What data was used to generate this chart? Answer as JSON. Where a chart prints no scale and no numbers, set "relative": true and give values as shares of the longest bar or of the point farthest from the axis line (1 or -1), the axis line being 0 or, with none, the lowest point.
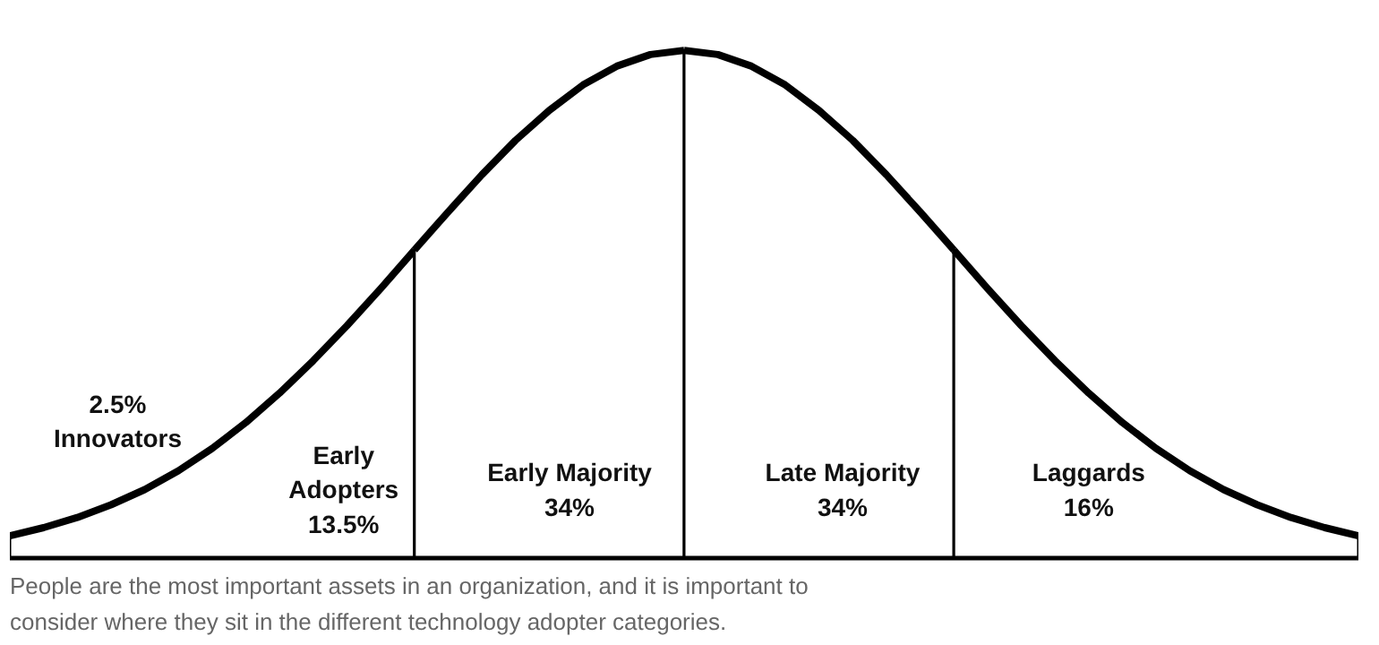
{
  "chart_data": {
    "type": "area",
    "relative": true,
    "categories": [
      null,
      null,
      null,
      null,
      null,
      null,
      null,
      null,
      null,
      null,
      null,
      null,
      null,
      null,
      null,
      null,
      null,
      null,
      null,
      null,
      null,
      null,
      null,
      null,
      null,
      null,
      null,
      null,
      null,
      null,
      null,
      null,
      null,
      null,
      null,
      null,
      null,
      null,
      null,
      null,
      null
    ],
    "series": [
      {
        "color": "#000000",
        "values": [
          0.044,
          0.06,
          0.08,
          0.105,
          0.135,
          0.172,
          0.216,
          0.267,
          0.325,
          0.389,
          0.458,
          0.531,
          0.607,
          null,
          null,
          null,
          null,
          null,
          null,
          null,
          null,
          null,
          null,
          null,
          null,
          null,
          null,
          null,
          null,
          null,
          null,
          null,
          null,
          null,
          null,
          null,
          null,
          null,
          null,
          null,
          null
        ]
      },
      {
        "color": "#000000",
        "values": [
          null,
          null,
          null,
          null,
          null,
          null,
          null,
          null,
          null,
          null,
          null,
          null,
          0.607,
          0.682,
          0.755,
          0.823,
          0.882,
          0.932,
          0.969,
          0.992,
          1,
          null,
          null,
          null,
          null,
          null,
          null,
          null,
          null,
          null,
          null,
          null,
          null,
          null,
          null,
          null,
          null,
          null,
          null,
          null,
          null
        ]
      },
      {
        "color": "#000000",
        "values": [
          null,
          null,
          null,
          null,
          null,
          null,
          null,
          null,
          null,
          null,
          null,
          null,
          null,
          null,
          null,
          null,
          null,
          null,
          null,
          null,
          1,
          0.992,
          0.969,
          0.932,
          0.882,
          0.823,
          0.755,
          0.682,
          0.607,
          null,
          null,
          null,
          null,
          null,
          null,
          null,
          null,
          null,
          null,
          null,
          null
        ]
      },
      {
        "color": "#000000",
        "values": [
          null,
          null,
          null,
          null,
          null,
          null,
          null,
          null,
          null,
          null,
          null,
          null,
          null,
          null,
          null,
          null,
          null,
          null,
          null,
          null,
          null,
          null,
          null,
          null,
          null,
          null,
          null,
          null,
          0.607,
          0.531,
          0.458,
          0.389,
          0.325,
          0.267,
          0.216,
          0.172,
          0.135,
          0.105,
          0.08,
          0.06,
          0.044
        ]
      }
    ],
    "annotations": [
      "2.5%\nInnovators",
      "Early\nAdopters\n13.5%",
      "Early Majority\n34%",
      "Late Majority\n34%",
      "Laggards\n16%",
      "People are the most important assets in an organization, and it is important to consider where they sit in the different technology adopter categories."
    ]
  }
}
